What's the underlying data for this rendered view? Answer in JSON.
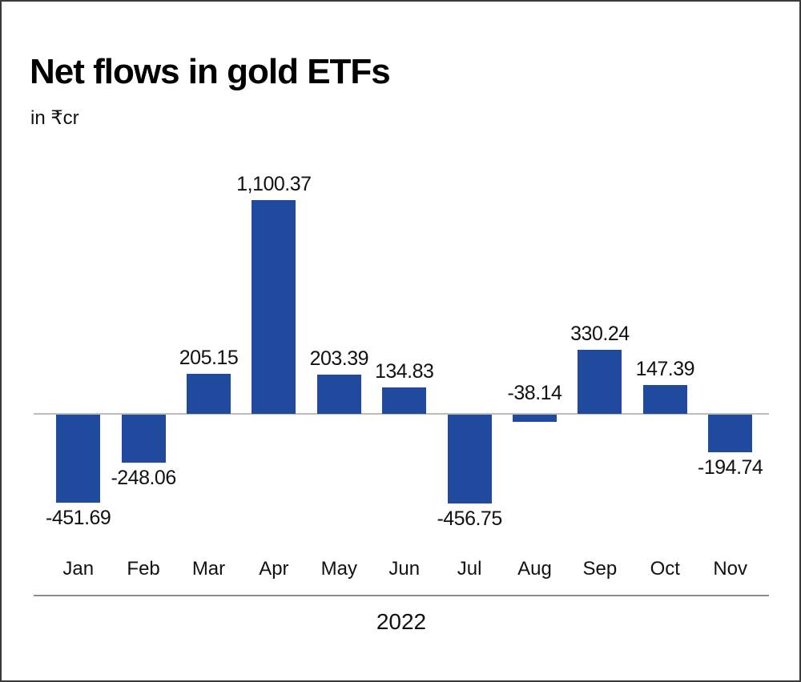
{
  "chart": {
    "title": "Net flows in gold ETFs",
    "subtitle": "in ₹cr",
    "year_label": "2022"
  },
  "chart_data": {
    "type": "bar",
    "title": "Net flows in gold ETFs",
    "subtitle": "in ₹cr",
    "categories": [
      "Jan",
      "Feb",
      "Mar",
      "Apr",
      "May",
      "Jun",
      "Jul",
      "Aug",
      "Sep",
      "Oct",
      "Nov"
    ],
    "values": [
      -451.69,
      -248.06,
      205.15,
      1100.37,
      203.39,
      134.83,
      -456.75,
      -38.14,
      330.24,
      147.39,
      -194.74
    ],
    "value_labels": [
      "-451.69",
      "-248.06",
      "205.15",
      "1,100.37",
      "203.39",
      "134.83",
      "-456.75",
      "-38.14",
      "330.24",
      "147.39",
      "-194.74"
    ],
    "xlabel": "2022",
    "ylabel": "in ₹cr",
    "ylim": [
      -560,
      1210
    ],
    "grid": false,
    "legend": "none",
    "bar_color": "#1f4a9e",
    "zero_line_color": "#bdbdbd",
    "axis_line_color": "#8c8c8c",
    "text_color": "#111111"
  }
}
